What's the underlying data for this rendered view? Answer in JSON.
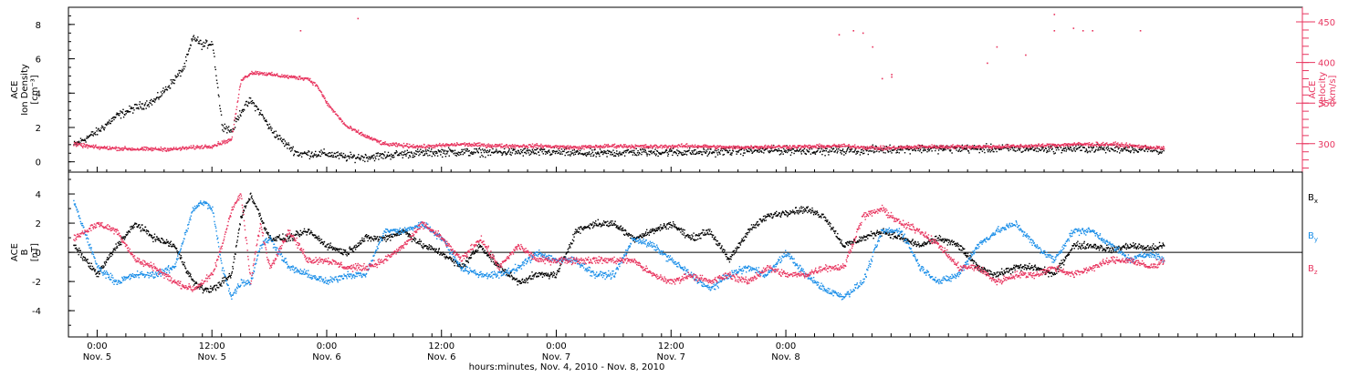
{
  "colors": {
    "black": "#000000",
    "red": "#e8355f",
    "blue": "#1a8ee8",
    "frame": "#000000"
  },
  "chart_data": [
    {
      "type": "scatter",
      "panel": "top",
      "ylabel_lines": [
        "ACE",
        "Ion Density",
        "[cm⁻³]"
      ],
      "ylim": [
        -0.6,
        9
      ],
      "yticks": [
        0,
        2,
        4,
        6,
        8
      ],
      "right_axis": {
        "ylabel_lines": [
          "ACE",
          "Velocity",
          "[km/s]"
        ],
        "ylim": [
          265,
          468
        ],
        "yticks": [
          300,
          350,
          400,
          450
        ],
        "color": "#e8355f"
      },
      "series": [
        {
          "name": "Ion Density",
          "axis": "left",
          "color": "#000000",
          "x": [
            -2.5,
            0,
            2,
            4,
            6,
            8,
            9,
            10,
            11,
            12,
            13,
            14,
            15,
            16,
            17,
            18,
            19,
            20,
            21,
            22,
            24,
            26,
            28,
            30,
            32,
            36,
            40,
            44,
            48,
            52,
            56,
            60,
            64,
            68,
            72,
            76,
            80,
            84,
            88,
            92,
            96,
            100,
            104,
            108,
            111.5
          ],
          "y": [
            1.0,
            1.8,
            2.7,
            3.2,
            3.6,
            4.8,
            5.5,
            7.3,
            6.8,
            7.0,
            2.2,
            1.8,
            3.0,
            3.6,
            2.9,
            2.0,
            1.4,
            0.9,
            0.5,
            0.5,
            0.5,
            0.3,
            0.3,
            0.4,
            0.5,
            0.6,
            0.6,
            0.6,
            0.6,
            0.5,
            0.6,
            0.6,
            0.6,
            0.7,
            0.7,
            0.7,
            0.7,
            0.8,
            0.8,
            0.8,
            0.8,
            0.8,
            0.8,
            0.8,
            0.7
          ]
        },
        {
          "name": "Velocity",
          "axis": "right",
          "color": "#e8355f",
          "x": [
            -2.5,
            0,
            4,
            8,
            12,
            14,
            15,
            15.5,
            16,
            17,
            18,
            20,
            22,
            23,
            24,
            25,
            26,
            28,
            30,
            34,
            38,
            42,
            46,
            50,
            54,
            58,
            62,
            66,
            70,
            74,
            78,
            82,
            86,
            90,
            94,
            98,
            102,
            106,
            111.5
          ],
          "y": [
            300,
            296,
            294,
            294,
            298,
            306,
            380,
            383,
            388,
            388,
            386,
            383,
            381,
            371,
            350,
            336,
            322,
            310,
            300,
            297,
            300,
            298,
            298,
            296,
            298,
            297,
            298,
            296,
            297,
            297,
            298,
            295,
            297,
            297,
            297,
            298,
            300,
            300,
            295
          ]
        }
      ],
      "sparse_points": [
        {
          "x": 27.2,
          "y": 455
        },
        {
          "x": 21.2,
          "y": 440
        },
        {
          "x": 100,
          "y": 460
        },
        {
          "x": 104,
          "y": 440
        },
        {
          "x": 79,
          "y": 440
        },
        {
          "x": 77.5,
          "y": 435
        },
        {
          "x": 80,
          "y": 437
        },
        {
          "x": 82,
          "y": 381
        },
        {
          "x": 83,
          "y": 383
        },
        {
          "x": 81,
          "y": 420
        },
        {
          "x": 83,
          "y": 386
        },
        {
          "x": 94,
          "y": 420
        },
        {
          "x": 97,
          "y": 410
        },
        {
          "x": 100,
          "y": 440
        },
        {
          "x": 102,
          "y": 443
        },
        {
          "x": 103,
          "y": 440
        },
        {
          "x": 109,
          "y": 440
        },
        {
          "x": 93,
          "y": 400
        }
      ]
    },
    {
      "type": "scatter",
      "panel": "bottom",
      "ylabel_lines": [
        "ACE",
        "B",
        "[nT]"
      ],
      "ylim": [
        -5.8,
        5.5
      ],
      "yticks": [
        -4,
        -2,
        0,
        2,
        4
      ],
      "zero_line": true,
      "legend_position": "right",
      "series": [
        {
          "name": "Bx",
          "name_base": "B",
          "name_sub": "x",
          "color": "#000000",
          "x": [
            -2.5,
            0,
            2,
            4,
            6,
            8,
            10,
            11,
            12,
            14,
            15,
            16,
            18,
            20,
            22,
            24,
            26,
            28,
            30,
            32,
            34,
            36,
            38,
            40,
            42,
            44,
            46,
            48,
            50,
            52,
            54,
            56,
            58,
            60,
            62,
            64,
            66,
            68,
            70,
            72,
            74,
            76,
            78,
            80,
            82,
            84,
            86,
            88,
            90,
            92,
            94,
            96,
            98,
            100,
            102,
            104,
            106,
            108,
            110,
            111.5
          ],
          "y": [
            0.5,
            -1.5,
            0.5,
            2.0,
            1.0,
            0.5,
            -2.0,
            -2.5,
            -2.5,
            -1.5,
            2.5,
            4.0,
            1.0,
            1.0,
            1.5,
            0.5,
            0.0,
            1.0,
            1.0,
            1.5,
            0.5,
            0.0,
            -1.0,
            0.5,
            -1.0,
            -2.0,
            -1.5,
            -1.5,
            1.5,
            2.0,
            2.0,
            1.0,
            1.5,
            2.0,
            1.0,
            1.5,
            -0.5,
            1.5,
            2.5,
            2.8,
            3.0,
            2.5,
            0.5,
            1.0,
            1.5,
            1.0,
            0.5,
            1.0,
            0.5,
            -1.0,
            -1.5,
            -1.0,
            -1.0,
            -1.5,
            0.5,
            0.5,
            0.2,
            0.5,
            0.3,
            0.5
          ]
        },
        {
          "name": "By",
          "name_base": "B",
          "name_sub": "y",
          "color": "#1a8ee8",
          "x": [
            -2.5,
            0,
            2,
            4,
            6,
            8,
            9,
            10,
            11,
            12,
            13,
            14,
            15,
            16,
            17,
            18,
            20,
            22,
            24,
            26,
            28,
            30,
            32,
            34,
            36,
            38,
            40,
            42,
            44,
            46,
            48,
            50,
            52,
            54,
            56,
            58,
            60,
            62,
            64,
            66,
            68,
            70,
            72,
            74,
            76,
            78,
            80,
            82,
            84,
            86,
            88,
            90,
            92,
            94,
            96,
            98,
            100,
            102,
            104,
            106,
            108,
            110,
            111.5
          ],
          "y": [
            3.5,
            -1.0,
            -2.0,
            -1.5,
            -1.5,
            -1.0,
            1.0,
            3.0,
            3.5,
            3.0,
            -1.0,
            -3.0,
            -2.0,
            -2.0,
            0.5,
            1.0,
            -1.0,
            -1.5,
            -2.0,
            -1.5,
            -1.5,
            1.5,
            1.5,
            2.0,
            1.0,
            -1.0,
            -1.5,
            -1.5,
            -1.0,
            0.0,
            -0.5,
            -0.5,
            -1.5,
            -1.5,
            1.0,
            0.5,
            -0.5,
            -1.5,
            -2.5,
            -1.5,
            -1.0,
            -1.5,
            0.0,
            -1.5,
            -2.5,
            -3.0,
            -2.0,
            1.5,
            1.5,
            -1.0,
            -2.0,
            -1.5,
            0.5,
            1.5,
            2.0,
            0.5,
            -0.5,
            1.5,
            1.5,
            0.5,
            -0.5,
            0.0,
            -0.5
          ]
        },
        {
          "name": "Bz",
          "name_base": "B",
          "name_sub": "z",
          "color": "#e8355f",
          "x": [
            -2.5,
            0,
            2,
            4,
            6,
            8,
            10,
            12,
            13,
            14,
            15,
            16,
            17,
            18,
            20,
            22,
            24,
            26,
            28,
            30,
            32,
            34,
            36,
            38,
            40,
            42,
            44,
            46,
            48,
            50,
            52,
            54,
            56,
            58,
            60,
            62,
            64,
            66,
            68,
            70,
            72,
            74,
            76,
            78,
            80,
            82,
            84,
            86,
            88,
            90,
            92,
            94,
            96,
            98,
            100,
            102,
            104,
            106,
            108,
            110,
            111.5
          ],
          "y": [
            1.0,
            2.0,
            1.5,
            -0.5,
            -1.0,
            -2.0,
            -2.5,
            -1.5,
            0.5,
            3.0,
            4.0,
            -2.0,
            2.0,
            -1.0,
            1.5,
            -0.5,
            -0.5,
            -1.0,
            -1.0,
            -0.5,
            0.5,
            2.0,
            1.0,
            -0.5,
            1.0,
            -1.0,
            0.5,
            -0.5,
            -0.5,
            -0.5,
            -0.5,
            -0.5,
            -0.5,
            -1.5,
            -2.0,
            -1.5,
            -2.0,
            -1.5,
            -2.0,
            -1.0,
            -1.5,
            -1.5,
            -1.0,
            -1.0,
            2.5,
            3.0,
            2.0,
            1.5,
            0.5,
            -1.0,
            -1.0,
            -2.0,
            -1.5,
            -1.5,
            -1.0,
            -1.5,
            -1.0,
            -0.5,
            -0.5,
            -1.0,
            -0.5
          ]
        }
      ]
    }
  ],
  "x_axis": {
    "range_hours": [
      -3,
      126
    ],
    "major_ticks": [
      {
        "h": 0,
        "time": "0:00",
        "date": "Nov. 5"
      },
      {
        "h": 12,
        "time": "12:00",
        "date": "Nov. 5"
      },
      {
        "h": 24,
        "time": "0:00",
        "date": "Nov. 6"
      },
      {
        "h": 36,
        "time": "12:00",
        "date": "Nov. 6"
      },
      {
        "h": 48,
        "time": "0:00",
        "date": "Nov. 7"
      },
      {
        "h": 60,
        "time": "12:00",
        "date": "Nov. 7"
      },
      {
        "h": 72,
        "time": "0:00",
        "date": "Nov. 8"
      }
    ],
    "label": "hours:minutes, Nov.  4, 2010 - Nov.  8, 2010"
  }
}
